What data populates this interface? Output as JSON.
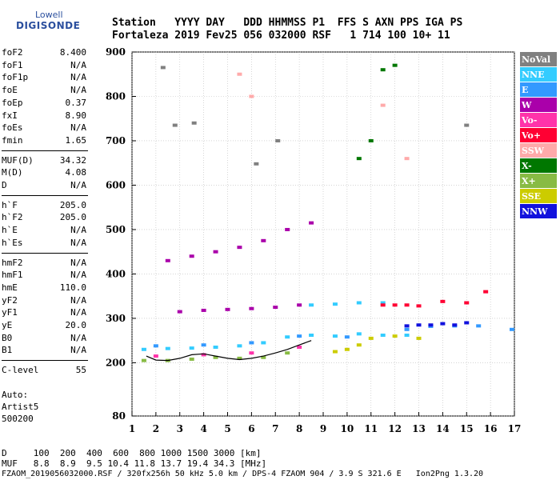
{
  "logo": {
    "line1": "Lowell",
    "line2": "DIGISONDE"
  },
  "header": {
    "labels": "Station   YYYY DAY   DDD HHMMSS P1  FFS S AXN PPS IGA PS",
    "values": "Fortaleza 2019 Fev25 056 032000 RSF   1 714 100 10+ 11"
  },
  "params_group1": [
    {
      "label": "foF2",
      "value": "8.400"
    },
    {
      "label": "foF1",
      "value": "N/A"
    },
    {
      "label": "foF1p",
      "value": "N/A"
    },
    {
      "label": "foE",
      "value": "N/A"
    },
    {
      "label": "foEp",
      "value": "0.37"
    },
    {
      "label": "fxI",
      "value": "8.90"
    },
    {
      "label": "foEs",
      "value": "N/A"
    },
    {
      "label": "fmin",
      "value": "1.65"
    }
  ],
  "params_group2": [
    {
      "label": "MUF(D)",
      "value": "34.32"
    },
    {
      "label": "M(D)",
      "value": "4.08"
    },
    {
      "label": "D",
      "value": "N/A"
    }
  ],
  "params_group3": [
    {
      "label": "h`F",
      "value": "205.0"
    },
    {
      "label": "h`F2",
      "value": "205.0"
    },
    {
      "label": "h`E",
      "value": "N/A"
    },
    {
      "label": "h`Es",
      "value": "N/A"
    }
  ],
  "params_group4": [
    {
      "label": "hmF2",
      "value": "N/A"
    },
    {
      "label": "hmF1",
      "value": "N/A"
    },
    {
      "label": "hmE",
      "value": "110.0"
    },
    {
      "label": "yF2",
      "value": "N/A"
    },
    {
      "label": "yF1",
      "value": "N/A"
    },
    {
      "label": "yE",
      "value": "20.0"
    },
    {
      "label": "B0",
      "value": "N/A"
    },
    {
      "label": "B1",
      "value": "N/A"
    }
  ],
  "params_group5": [
    {
      "label": "C-level",
      "value": "55"
    }
  ],
  "auto": {
    "line1": "Auto:",
    "line2": "Artist5",
    "line3": "500200"
  },
  "footer": {
    "d_line": "D     100  200  400  600  800 1000 1500 3000 [km]",
    "muf_line": "MUF   8.8  8.9  9.5 10.4 11.8 13.7 19.4 34.3 [MHz]",
    "file_line": "FZAOM_2019056032000.RSF / 320fx256h 50 kHz 5.0 km / DPS-4 FZAOM 904 / 3.9 S 321.6 E   Ion2Png 1.3.20"
  },
  "legend": [
    {
      "label": "NoVal",
      "color": "#808080"
    },
    {
      "label": "NNE",
      "color": "#33ccff"
    },
    {
      "label": "E",
      "color": "#3399ff"
    },
    {
      "label": "W",
      "color": "#aa00aa"
    },
    {
      "label": "Vo-",
      "color": "#ff33aa"
    },
    {
      "label": "Vo+",
      "color": "#ff0033"
    },
    {
      "label": "SSW",
      "color": "#ffaaaa"
    },
    {
      "label": "X-",
      "color": "#007700"
    },
    {
      "label": "X+",
      "color": "#88bb44"
    },
    {
      "label": "SSE",
      "color": "#cccc00"
    },
    {
      "label": "NNW",
      "color": "#1111dd"
    }
  ],
  "chart_data": {
    "type": "scatter",
    "xlabel": "",
    "ylabel": "",
    "xlim": [
      1,
      17
    ],
    "ylim": [
      80,
      900
    ],
    "x_ticks": [
      1,
      2,
      3,
      4,
      5,
      6,
      7,
      8,
      9,
      10,
      11,
      12,
      13,
      14,
      15,
      16,
      17
    ],
    "y_ticks": [
      80,
      200,
      300,
      400,
      500,
      600,
      700,
      800,
      900
    ],
    "grid": true,
    "series": [
      {
        "name": "NNE",
        "color": "#33ccff",
        "points": [
          [
            1.5,
            230
          ],
          [
            2.5,
            232
          ],
          [
            3.5,
            233
          ],
          [
            4.5,
            235
          ],
          [
            5.5,
            238
          ],
          [
            6.5,
            245
          ],
          [
            7.5,
            258
          ],
          [
            8.5,
            262
          ],
          [
            9.5,
            260
          ],
          [
            10.5,
            265
          ],
          [
            11.5,
            262
          ],
          [
            12.5,
            262
          ],
          [
            8.5,
            330
          ],
          [
            9.5,
            332
          ],
          [
            10.5,
            335
          ],
          [
            11.5,
            335
          ]
        ]
      },
      {
        "name": "E",
        "color": "#3399ff",
        "points": [
          [
            2,
            238
          ],
          [
            4,
            240
          ],
          [
            6,
            245
          ],
          [
            8,
            260
          ],
          [
            10,
            258
          ],
          [
            12.5,
            275
          ],
          [
            13.5,
            282
          ],
          [
            14.5,
            283
          ],
          [
            15.5,
            283
          ],
          [
            16.9,
            275
          ]
        ]
      },
      {
        "name": "W",
        "color": "#aa00aa",
        "points": [
          [
            2.5,
            430
          ],
          [
            3.5,
            440
          ],
          [
            4.5,
            450
          ],
          [
            5.5,
            460
          ],
          [
            6.5,
            475
          ],
          [
            7.5,
            500
          ],
          [
            8.5,
            515
          ],
          [
            3,
            315
          ],
          [
            4,
            318
          ],
          [
            5,
            320
          ],
          [
            6,
            322
          ],
          [
            7,
            325
          ],
          [
            8,
            330
          ]
        ]
      },
      {
        "name": "Vo-",
        "color": "#ff33aa",
        "points": [
          [
            2,
            215
          ],
          [
            4,
            218
          ],
          [
            6,
            222
          ],
          [
            8,
            235
          ]
        ]
      },
      {
        "name": "Vo+",
        "color": "#ff0033",
        "points": [
          [
            11.5,
            330
          ],
          [
            12,
            330
          ],
          [
            12.5,
            330
          ],
          [
            13,
            328
          ],
          [
            14,
            338
          ],
          [
            15,
            335
          ],
          [
            15.8,
            360
          ]
        ]
      },
      {
        "name": "SSW",
        "color": "#ffaaaa",
        "points": [
          [
            5.5,
            850
          ],
          [
            6,
            800
          ],
          [
            11.5,
            780
          ],
          [
            12.5,
            660
          ]
        ]
      },
      {
        "name": "X-",
        "color": "#007700",
        "points": [
          [
            10.5,
            660
          ],
          [
            11,
            700
          ],
          [
            11.5,
            860
          ],
          [
            12,
            870
          ]
        ]
      },
      {
        "name": "X+",
        "color": "#88bb44",
        "points": [
          [
            1.5,
            205
          ],
          [
            2.5,
            205
          ],
          [
            3.5,
            208
          ],
          [
            4.5,
            212
          ],
          [
            5.5,
            210
          ],
          [
            6.5,
            212
          ],
          [
            7.5,
            222
          ]
        ]
      },
      {
        "name": "SSE",
        "color": "#cccc00",
        "points": [
          [
            9.5,
            225
          ],
          [
            10,
            230
          ],
          [
            10.5,
            240
          ],
          [
            11,
            255
          ],
          [
            12,
            260
          ],
          [
            13,
            255
          ]
        ]
      },
      {
        "name": "NNW",
        "color": "#1111dd",
        "points": [
          [
            12.5,
            283
          ],
          [
            13,
            285
          ],
          [
            13.5,
            285
          ],
          [
            14,
            288
          ],
          [
            14.5,
            285
          ],
          [
            15,
            290
          ]
        ]
      },
      {
        "name": "NoVal",
        "color": "#808080",
        "points": [
          [
            2.3,
            865
          ],
          [
            2.8,
            735
          ],
          [
            3.6,
            740
          ],
          [
            6.2,
            648
          ],
          [
            7.1,
            700
          ],
          [
            15,
            735
          ]
        ]
      }
    ],
    "trace": {
      "color": "#000000",
      "points": [
        [
          1.6,
          215
        ],
        [
          2,
          206
        ],
        [
          2.5,
          205
        ],
        [
          3,
          210
        ],
        [
          3.5,
          218
        ],
        [
          4,
          220
        ],
        [
          4.5,
          215
        ],
        [
          5,
          210
        ],
        [
          5.5,
          207
        ],
        [
          6,
          210
        ],
        [
          6.5,
          215
        ],
        [
          7,
          222
        ],
        [
          7.5,
          230
        ],
        [
          8,
          240
        ],
        [
          8.5,
          250
        ]
      ]
    }
  }
}
